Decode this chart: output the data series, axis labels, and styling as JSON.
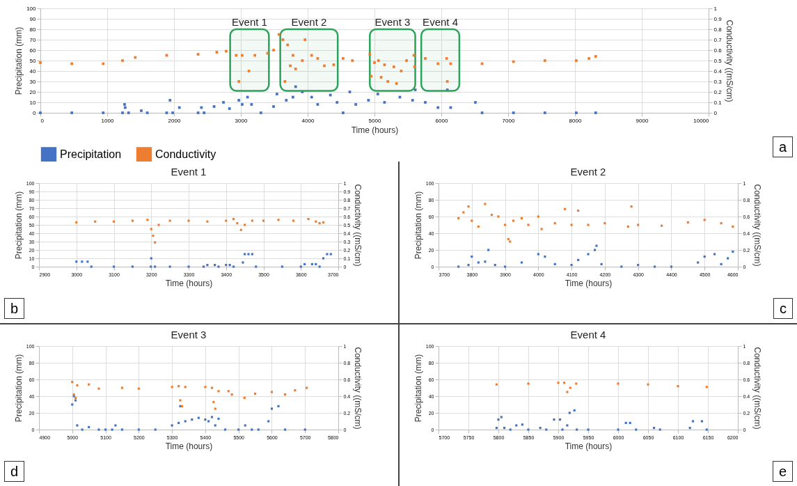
{
  "chart_data": [
    {
      "type": "scatter",
      "xlabel": "Time (hours)",
      "ylabel": "Precipitation (mm)",
      "y2label": "Conductivity ((mS/cm)",
      "xlim": [
        0,
        10000
      ],
      "xticks": [
        0,
        1000,
        2000,
        3000,
        4000,
        5000,
        6000,
        7000,
        8000,
        9000,
        10000
      ],
      "ylim": [
        0,
        100
      ],
      "yticks": [
        0,
        10,
        20,
        30,
        40,
        50,
        60,
        70,
        80,
        90,
        100
      ],
      "y2lim": [
        0,
        1
      ],
      "y2ticks": [
        0,
        0.1,
        0.2,
        0.3,
        0.4,
        0.5,
        0.6,
        0.7,
        0.8,
        0.9,
        1
      ],
      "grid": true,
      "legend": "bottom",
      "marker": "square",
      "annotations": [
        "a"
      ],
      "bands": [
        {
          "axis": "x",
          "from": 2840,
          "to": 3420,
          "label": "Event 1",
          "color": "#2ca35a"
        },
        {
          "axis": "x",
          "from": 3590,
          "to": 4450,
          "label": "Event 2",
          "color": "#2ca35a"
        },
        {
          "axis": "x",
          "from": 4930,
          "to": 5610,
          "label": "Event 3",
          "color": "#2ca35a"
        },
        {
          "axis": "x",
          "from": 5700,
          "to": 6270,
          "label": "Event 4",
          "color": "#2ca35a"
        }
      ],
      "series": [
        {
          "name": "Precipitation",
          "color": "#4472c4",
          "x": [
            0,
            470,
            940,
            1230,
            1260,
            1270,
            1320,
            1510,
            1600,
            1890,
            1940,
            1980,
            2080,
            2360,
            2410,
            2450,
            2600,
            2740,
            2830,
            2970,
            3020,
            3100,
            3160,
            3300,
            3490,
            3540,
            3680,
            3780,
            3820,
            3920,
            4060,
            4150,
            4340,
            4440,
            4530,
            4630,
            4720,
            4910,
            5050,
            5150,
            5380,
            5570,
            5610,
            5760,
            5950,
            6090,
            6140,
            6510,
            6610,
            7080,
            7550,
            8020,
            8310
          ],
          "values": [
            0,
            0,
            0,
            0,
            8,
            5,
            0,
            2,
            0,
            0,
            12,
            0,
            5,
            0,
            5,
            0,
            6,
            10,
            4,
            12,
            8,
            15,
            8,
            0,
            6,
            18,
            12,
            15,
            25,
            20,
            15,
            8,
            17,
            10,
            0,
            20,
            8,
            12,
            18,
            10,
            15,
            12,
            22,
            10,
            5,
            22,
            5,
            10,
            0,
            0,
            0,
            0,
            0
          ]
        },
        {
          "name": "Conductivity",
          "color": "#ed7d31",
          "axis": "y2",
          "x": [
            0,
            470,
            940,
            1230,
            1420,
            1890,
            2360,
            2640,
            2780,
            2930,
            2970,
            3020,
            3120,
            3210,
            3400,
            3490,
            3570,
            3630,
            3660,
            3700,
            3740,
            3780,
            3820,
            3920,
            3960,
            4060,
            4150,
            4250,
            4390,
            4530,
            4670,
            4930,
            4950,
            5000,
            5060,
            5100,
            5150,
            5200,
            5290,
            5330,
            5400,
            5480,
            5590,
            5600,
            5760,
            5950,
            6080,
            6090,
            6140,
            6610,
            7080,
            7550,
            8020,
            8210,
            8310
          ],
          "values": [
            0.48,
            0.47,
            0.47,
            0.5,
            0.53,
            0.55,
            0.56,
            0.58,
            0.59,
            0.55,
            0.3,
            0.55,
            0.4,
            0.55,
            0.57,
            0.6,
            0.75,
            0.7,
            0.3,
            0.65,
            0.45,
            0.55,
            0.42,
            0.5,
            0.7,
            0.55,
            0.52,
            0.45,
            0.46,
            0.52,
            0.5,
            0.56,
            0.35,
            0.48,
            0.5,
            0.34,
            0.46,
            0.3,
            0.44,
            0.28,
            0.4,
            0.5,
            0.55,
            0.44,
            0.52,
            0.47,
            0.52,
            0.3,
            0.47,
            0.47,
            0.49,
            0.5,
            0.5,
            0.52,
            0.54
          ]
        }
      ]
    },
    {
      "type": "scatter",
      "title": "Event 1",
      "xlabel": "Time (hours)",
      "ylabel": "Precipitation (mm)",
      "y2label": "Conductivity ((mS/cm)",
      "xlim": [
        2900,
        3700
      ],
      "xticks": [
        2900,
        3000,
        3100,
        3200,
        3300,
        3400,
        3500,
        3600,
        3700
      ],
      "ylim": [
        0,
        100
      ],
      "yticks": [
        0,
        10,
        20,
        30,
        40,
        50,
        60,
        70,
        80,
        90,
        100
      ],
      "y2lim": [
        0,
        1
      ],
      "y2ticks": [
        0,
        0.1,
        0.2,
        0.3,
        0.4,
        0.5,
        0.6,
        0.7,
        0.8,
        0.9,
        1
      ],
      "grid": true,
      "marker": "square",
      "annotations": [
        "b"
      ],
      "series": [
        {
          "color": "#4472c4",
          "x": [
            3000,
            3015,
            3030,
            3040,
            3100,
            3150,
            3199,
            3200,
            3210,
            3250,
            3300,
            3340,
            3350,
            3370,
            3380,
            3400,
            3410,
            3420,
            3445,
            3450,
            3460,
            3470,
            3480,
            3550,
            3600,
            3610,
            3630,
            3640,
            3650,
            3660,
            3670,
            3680
          ],
          "values": [
            6,
            6,
            6,
            0,
            0,
            0,
            0,
            10,
            0,
            0,
            0,
            0,
            2,
            2,
            0,
            2,
            2,
            0,
            5,
            15,
            15,
            15,
            0,
            0,
            0,
            3,
            3,
            3,
            0,
            10,
            15,
            15
          ]
        },
        {
          "color": "#ed7d31",
          "axis": "y2",
          "x": [
            3000,
            3050,
            3100,
            3150,
            3190,
            3200,
            3205,
            3210,
            3220,
            3250,
            3300,
            3350,
            3400,
            3420,
            3430,
            3440,
            3450,
            3470,
            3500,
            3540,
            3580,
            3620,
            3640,
            3650,
            3660
          ],
          "values": [
            0.53,
            0.54,
            0.54,
            0.55,
            0.56,
            0.45,
            0.37,
            0.29,
            0.5,
            0.55,
            0.55,
            0.54,
            0.55,
            0.57,
            0.52,
            0.44,
            0.5,
            0.55,
            0.55,
            0.56,
            0.55,
            0.57,
            0.54,
            0.52,
            0.53
          ]
        }
      ]
    },
    {
      "type": "scatter",
      "title": "Event 2",
      "xlabel": "Time (hours)",
      "ylabel": "Precipitation (mm)",
      "y2label": "Conductivity ((mS/cm)",
      "xlim": [
        3700,
        4600
      ],
      "xticks": [
        3700,
        3800,
        3900,
        4000,
        4100,
        4200,
        4300,
        4400,
        4500,
        4600
      ],
      "ylim": [
        0,
        100
      ],
      "yticks": [
        0,
        20,
        40,
        60,
        80,
        100
      ],
      "y2lim": [
        0,
        1
      ],
      "y2ticks": [
        0,
        0.2,
        0.4,
        0.6,
        0.8,
        1
      ],
      "grid": true,
      "marker": "square",
      "annotations": [
        "c"
      ],
      "series": [
        {
          "color": "#4472c4",
          "x": [
            3760,
            3790,
            3800,
            3820,
            3840,
            3850,
            3870,
            3900,
            3950,
            4000,
            4020,
            4050,
            4100,
            4120,
            4150,
            4170,
            4175,
            4190,
            4250,
            4300,
            4350,
            4400,
            4480,
            4500,
            4530,
            4550,
            4570,
            4585
          ],
          "values": [
            0,
            2,
            12,
            5,
            6,
            20,
            2,
            0,
            5,
            15,
            12,
            3,
            2,
            8,
            15,
            20,
            25,
            3,
            0,
            2,
            0,
            0,
            5,
            12,
            15,
            3,
            10,
            18
          ]
        },
        {
          "color": "#ed7d31",
          "axis": "y2",
          "x": [
            3760,
            3775,
            3790,
            3800,
            3820,
            3840,
            3860,
            3880,
            3900,
            3910,
            3915,
            3925,
            3950,
            3970,
            4000,
            4010,
            4050,
            4080,
            4100,
            4120,
            4150,
            4200,
            4270,
            4280,
            4300,
            4371,
            4450,
            4500,
            4550,
            4585
          ],
          "values": [
            0.58,
            0.65,
            0.72,
            0.55,
            0.48,
            0.75,
            0.62,
            0.6,
            0.5,
            0.33,
            0.3,
            0.55,
            0.58,
            0.5,
            0.6,
            0.45,
            0.52,
            0.69,
            0.5,
            0.67,
            0.5,
            0.52,
            0.48,
            0.72,
            0.5,
            0.49,
            0.53,
            0.56,
            0.52,
            0.48
          ]
        }
      ]
    },
    {
      "type": "scatter",
      "title": "Event 3",
      "xlabel": "Time (hours)",
      "ylabel": "Precipitation (mm)",
      "y2label": "Conductivity ((mS/cm)",
      "xlim": [
        4900,
        5800
      ],
      "xticks": [
        4900,
        5000,
        5100,
        5200,
        5300,
        5400,
        5500,
        5600,
        5700,
        5800
      ],
      "ylim": [
        0,
        100
      ],
      "yticks": [
        0,
        20,
        40,
        60,
        80,
        100
      ],
      "y2lim": [
        0,
        1
      ],
      "y2ticks": [
        0,
        0.2,
        0.4,
        0.6,
        0.8,
        1
      ],
      "grid": true,
      "marker": "square",
      "annotations": [
        "d"
      ],
      "series": [
        {
          "color": "#4472c4",
          "x": [
            5000,
            5005,
            5010,
            5015,
            5030,
            5050,
            5080,
            5100,
            5120,
            5130,
            5150,
            5200,
            5250,
            5300,
            5320,
            5325,
            5340,
            5360,
            5380,
            5400,
            5410,
            5420,
            5430,
            5440,
            5460,
            5500,
            5520,
            5540,
            5560,
            5590,
            5600,
            5620,
            5640,
            5700
          ],
          "values": [
            30,
            40,
            35,
            5,
            0,
            3,
            0,
            0,
            0,
            5,
            0,
            0,
            0,
            5,
            8,
            28,
            10,
            12,
            14,
            12,
            10,
            15,
            5,
            13,
            0,
            0,
            5,
            0,
            0,
            10,
            25,
            28,
            0,
            0
          ]
        },
        {
          "color": "#ed7d31",
          "axis": "y2",
          "x": [
            5000,
            5005,
            5010,
            5015,
            5050,
            5080,
            5150,
            5200,
            5300,
            5320,
            5325,
            5330,
            5340,
            5400,
            5420,
            5425,
            5430,
            5440,
            5470,
            5480,
            5518,
            5550,
            5600,
            5640,
            5670,
            5705
          ],
          "values": [
            0.57,
            0.42,
            0.38,
            0.53,
            0.54,
            0.49,
            0.5,
            0.49,
            0.51,
            0.52,
            0.35,
            0.28,
            0.51,
            0.51,
            0.5,
            0.33,
            0.25,
            0.46,
            0.46,
            0.42,
            0.38,
            0.43,
            0.45,
            0.42,
            0.47,
            0.5
          ]
        }
      ]
    },
    {
      "type": "scatter",
      "title": "Event 4",
      "xlabel": "Time (hours)",
      "ylabel": "Precipitation (mm)",
      "y2label": "Conductivity ((mS/cm)",
      "xlim": [
        5700,
        6200
      ],
      "xticks": [
        5700,
        5750,
        5800,
        5850,
        5900,
        5950,
        6000,
        6050,
        6100,
        6150,
        6200
      ],
      "ylim": [
        0,
        100
      ],
      "yticks": [
        0,
        20,
        40,
        60,
        80,
        100
      ],
      "y2lim": [
        0,
        1
      ],
      "y2ticks": [
        0,
        0.2,
        0.4,
        0.6,
        0.8,
        1
      ],
      "grid": true,
      "marker": "square",
      "annotations": [
        "e"
      ],
      "series": [
        {
          "color": "#4472c4",
          "x": [
            5797,
            5800,
            5805,
            5810,
            5820,
            5830,
            5840,
            5850,
            5870,
            5880,
            5893,
            5903,
            5907,
            5915,
            5919,
            5927,
            5931,
            5950,
            6000,
            6013,
            6020,
            6030,
            6060,
            6070,
            6120,
            6125,
            6140,
            6148
          ],
          "values": [
            2,
            12,
            15,
            2,
            0,
            5,
            6,
            0,
            2,
            0,
            12,
            12,
            0,
            5,
            20,
            23,
            0,
            0,
            0,
            8,
            8,
            0,
            2,
            0,
            2,
            10,
            10,
            0
          ]
        },
        {
          "color": "#ed7d31",
          "axis": "y2",
          "x": [
            5797,
            5850,
            5900,
            5910,
            5915,
            5920,
            5930,
            6000,
            6050,
            6100,
            6148
          ],
          "values": [
            0.54,
            0.55,
            0.56,
            0.56,
            0.45,
            0.5,
            0.55,
            0.55,
            0.54,
            0.52,
            0.51
          ]
        }
      ]
    }
  ]
}
